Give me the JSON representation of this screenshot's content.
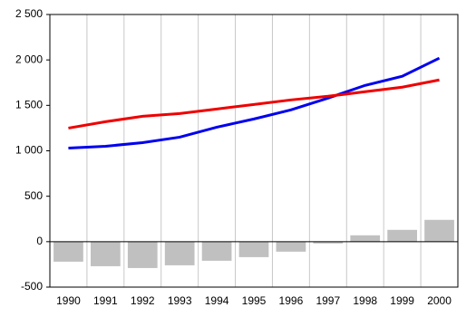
{
  "chart_data": {
    "type": "combo",
    "categories": [
      "1990",
      "1991",
      "1992",
      "1993",
      "1994",
      "1995",
      "1996",
      "1997",
      "1998",
      "1999",
      "2000"
    ],
    "series": [
      {
        "type": "bar",
        "color": "#c0c0c0",
        "values": [
          -220,
          -270,
          -290,
          -260,
          -210,
          -170,
          -110,
          -20,
          70,
          130,
          240
        ]
      },
      {
        "type": "line",
        "color": "#0000ee",
        "values": [
          1030,
          1050,
          1090,
          1150,
          1260,
          1350,
          1450,
          1580,
          1720,
          1820,
          2020
        ]
      },
      {
        "type": "line",
        "color": "#ee0000",
        "values": [
          1250,
          1320,
          1380,
          1410,
          1460,
          1510,
          1560,
          1600,
          1650,
          1700,
          1780
        ]
      }
    ],
    "ylim": [
      -500,
      2500
    ],
    "yticks": [
      -500,
      {
        "value": 0,
        "label": "0"
      },
      500,
      {
        "value": 1000,
        "label": "1 000"
      },
      {
        "value": 1500,
        "label": "1 500"
      },
      {
        "value": 2000,
        "label": "2 000"
      },
      {
        "value": 2500,
        "label": "2 500"
      }
    ],
    "grid": "x"
  }
}
